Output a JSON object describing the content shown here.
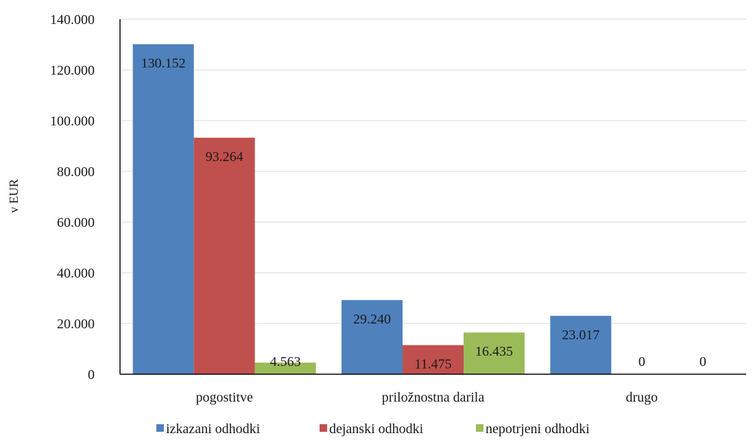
{
  "chart_data": {
    "type": "bar",
    "categories": [
      "pogostitve",
      "priložnostna darila",
      "drugo"
    ],
    "series": [
      {
        "name": "izkazani odhodki",
        "color": "#4f81bd",
        "values": [
          130152,
          29240,
          23017
        ],
        "labels": [
          "130.152",
          "29.240",
          "23.017"
        ]
      },
      {
        "name": "dejanski odhodki",
        "color": "#c0504d",
        "values": [
          93264,
          11475,
          0
        ],
        "labels": [
          "93.264",
          "11.475",
          "0"
        ]
      },
      {
        "name": "nepotrjeni odhodki",
        "color": "#9bbb59",
        "values": [
          4563,
          16435,
          0
        ],
        "labels": [
          "4.563",
          "16.435",
          "0"
        ]
      }
    ],
    "ylabel": "v EUR",
    "ylim": [
      0,
      140000
    ],
    "yticks": [
      0,
      20000,
      40000,
      60000,
      80000,
      100000,
      120000,
      140000
    ],
    "ytick_labels": [
      "0",
      "20.000",
      "40.000",
      "60.000",
      "80.000",
      "100.000",
      "120.000",
      "140.000"
    ],
    "grid": true,
    "legend_position": "bottom"
  }
}
